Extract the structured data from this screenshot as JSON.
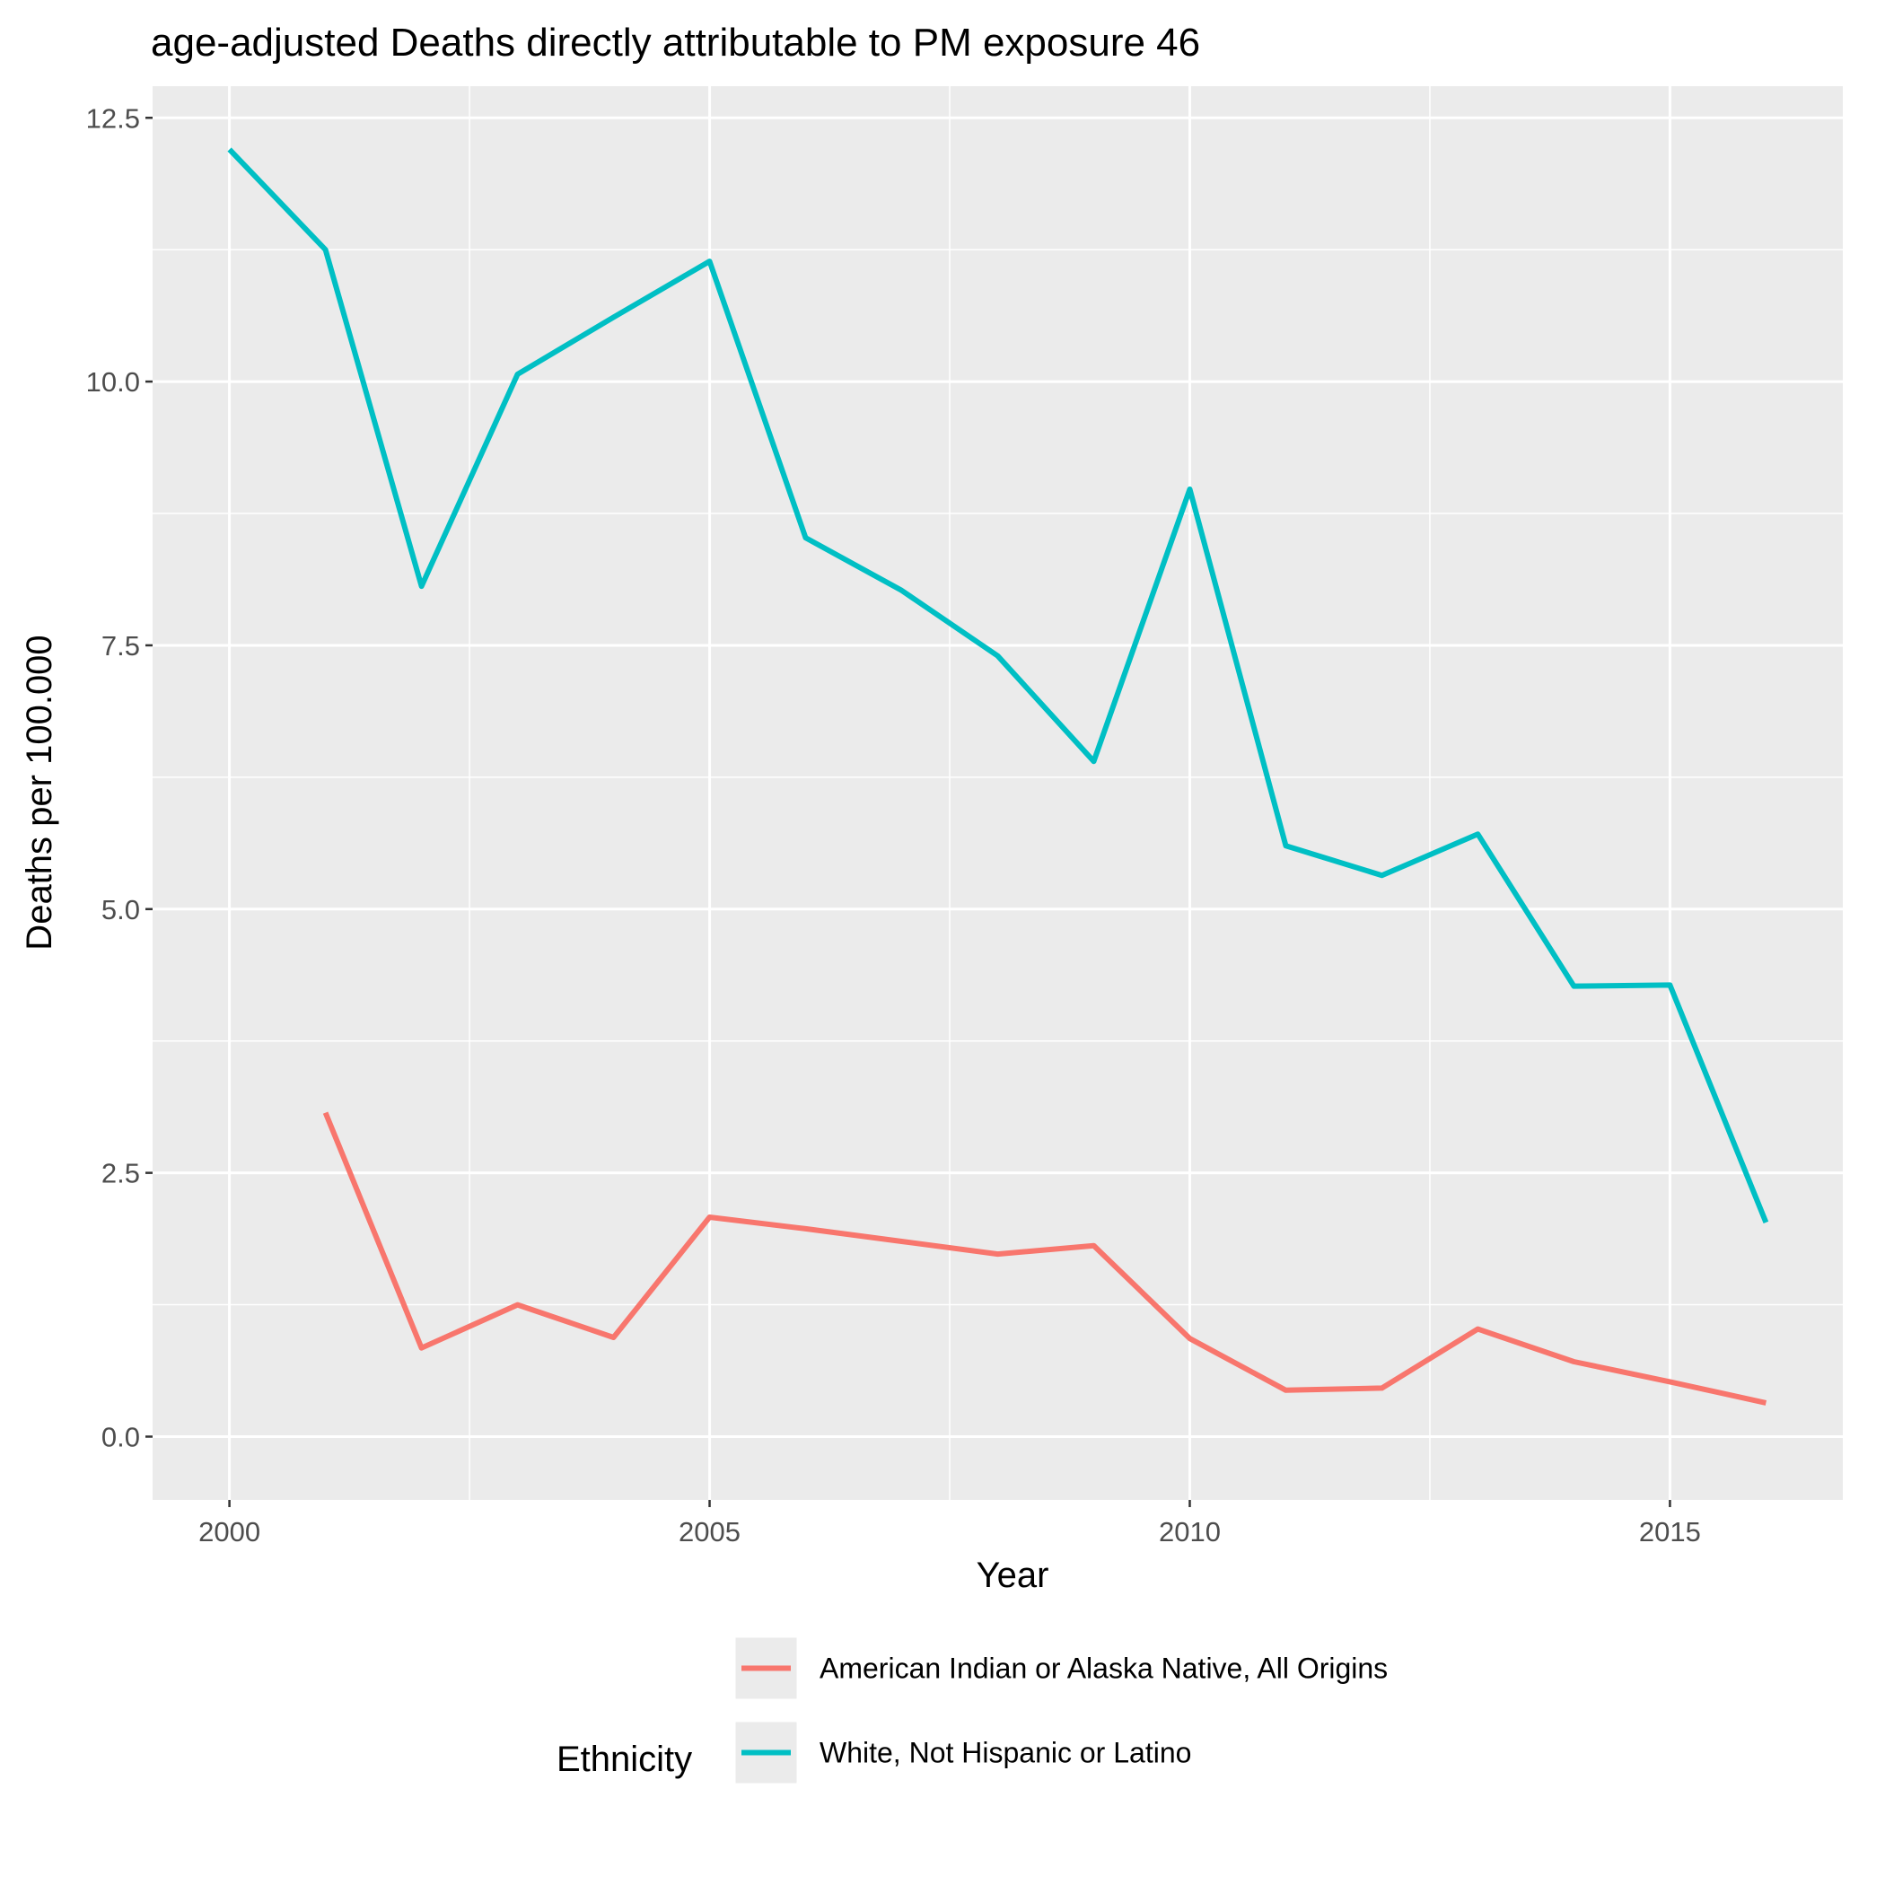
{
  "chart_data": {
    "type": "line",
    "title": "age-adjusted Deaths directly attributable to PM exposure 46",
    "xlabel": "Year",
    "ylabel": "Deaths per 100.000",
    "xlim": [
      1999.2,
      2016.8
    ],
    "ylim": [
      -0.6,
      12.8
    ],
    "x_ticks": [
      2000,
      2005,
      2010,
      2015
    ],
    "x_tick_labels": [
      "2000",
      "2005",
      "2010",
      "2015"
    ],
    "y_ticks": [
      0,
      2.5,
      5,
      7.5,
      10,
      12.5
    ],
    "y_tick_labels": [
      "0.0",
      "2.5",
      "5.0",
      "7.5",
      "10.0",
      "12.5"
    ],
    "grid": true,
    "panel_background": "#EBEBEB",
    "legend": {
      "title": "Ethnicity",
      "placement": "bottom",
      "entries": [
        "American Indian or Alaska Native, All Origins",
        "White, Not Hispanic or Latino"
      ]
    },
    "series": [
      {
        "name": "American Indian or Alaska Native, All Origins",
        "color": "#F8766D",
        "x": [
          2001,
          2002,
          2003,
          2004,
          2005,
          2006,
          2007,
          2008,
          2009,
          2010,
          2011,
          2012,
          2013,
          2014,
          2015,
          2016
        ],
        "y": [
          3.07,
          0.84,
          1.25,
          0.94,
          2.08,
          1.97,
          1.85,
          1.73,
          1.81,
          0.93,
          0.44,
          0.46,
          1.02,
          0.71,
          0.52,
          0.32
        ]
      },
      {
        "name": "White, Not Hispanic or Latino",
        "color": "#00BFC4",
        "x": [
          2000,
          2001,
          2002,
          2003,
          2004,
          2005,
          2006,
          2007,
          2008,
          2009,
          2010,
          2011,
          2012,
          2013,
          2014,
          2015,
          2016
        ],
        "y": [
          12.2,
          11.25,
          8.06,
          10.07,
          10.61,
          11.14,
          8.52,
          8.02,
          7.4,
          6.4,
          8.98,
          5.6,
          5.32,
          5.71,
          4.27,
          4.28,
          2.03
        ]
      }
    ]
  }
}
